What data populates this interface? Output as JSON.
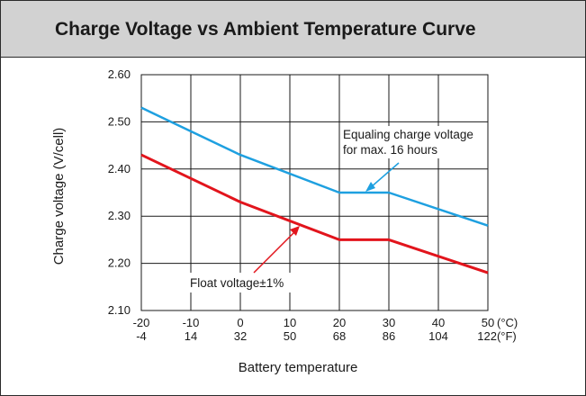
{
  "title": "Charge Voltage vs Ambient Temperature Curve",
  "chart_data": {
    "type": "line",
    "title": "Charge Voltage vs Ambient Temperature Curve",
    "xlabel": "Battery temperature",
    "ylabel": "Charge voltage (V/cell)",
    "xlim": [
      -20,
      50
    ],
    "ylim": [
      2.1,
      2.6
    ],
    "grid": true,
    "x_ticks": [
      -20,
      -10,
      0,
      10,
      20,
      30,
      40,
      50
    ],
    "x_ticks_f": [
      "-4",
      "14",
      "32",
      "50",
      "68",
      "86",
      "104",
      "122(°F)"
    ],
    "x_unit_c": "(°C)",
    "y_ticks": [
      "2.10",
      "2.20",
      "2.30",
      "2.40",
      "2.50",
      "2.60"
    ],
    "series": [
      {
        "name": "Equaling charge voltage",
        "color": "#1ea0e0",
        "x": [
          -20,
          0,
          20,
          30,
          50
        ],
        "y": [
          2.53,
          2.43,
          2.35,
          2.35,
          2.28
        ]
      },
      {
        "name": "Float voltage±1%",
        "color": "#e2141c",
        "x": [
          -20,
          0,
          20,
          30,
          50
        ],
        "y": [
          2.43,
          2.33,
          2.25,
          2.25,
          2.18
        ]
      }
    ],
    "annotations": [
      {
        "lines": [
          "Equaling charge voltage",
          "for max. 16 hours"
        ],
        "target_series": 0
      },
      {
        "lines": [
          "Float voltage±1%"
        ],
        "target_series": 1
      }
    ]
  }
}
